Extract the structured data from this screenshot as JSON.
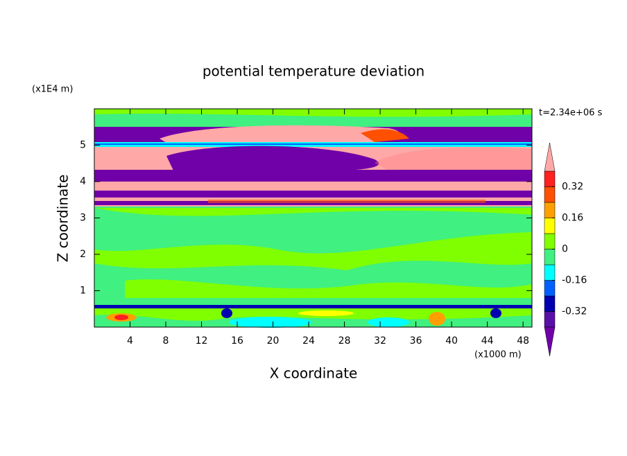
{
  "chart_data": {
    "type": "contour",
    "title": "potential temperature deviation",
    "x_label": "X coordinate",
    "y_label": "Z coordinate",
    "x_unit": "(x1000 m)",
    "y_unit": "(x1E4 m)",
    "annotation": "t=2.34e+06 s",
    "xlim": [
      0,
      49
    ],
    "ylim": [
      0,
      6
    ],
    "xticks": [
      4,
      8,
      12,
      16,
      20,
      24,
      28,
      32,
      36,
      40,
      44,
      48
    ],
    "yticks": [
      1,
      2,
      3,
      4,
      5
    ],
    "levels": [
      -0.4,
      -0.32,
      -0.24,
      -0.16,
      -0.08,
      0,
      0.08,
      0.16,
      0.24,
      0.32,
      0.4
    ],
    "colors": [
      "#7000a8",
      "#5a10a8",
      "#0000b0",
      "#0060ff",
      "#00ffff",
      "#40f080",
      "#80ff00",
      "#ffff00",
      "#ffa000",
      "#ff5000",
      "#ff2020",
      "#ffa8a8"
    ],
    "colorbar_ticks": [
      0.32,
      0.16,
      0,
      -0.16,
      -0.32
    ]
  }
}
